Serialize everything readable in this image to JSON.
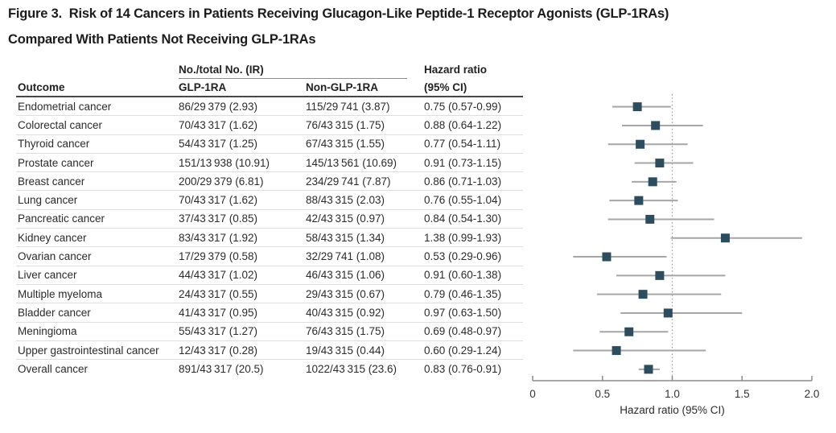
{
  "figure": {
    "title_line1": "Figure 3.  Risk of 14 Cancers in Patients Receiving Glucagon-Like Peptide-1 Receptor Agonists (GLP-1RAs)",
    "title_line2": "Compared With Patients Not Receiving GLP-1RAs"
  },
  "table": {
    "spanner_header": "No./total No. (IR)",
    "col_outcome": "Outcome",
    "col_glp1ra": "GLP-1RA",
    "col_non_glp1ra": "Non-GLP-1RA",
    "col_hr_line1": "Hazard ratio",
    "col_hr_line2": "(95% CI)",
    "rows": [
      {
        "outcome": "Endometrial cancer",
        "glp1ra": "86/29 379 (2.93)",
        "non_glp1ra": "115/29 741 (3.87)",
        "hr": "0.75 (0.57-0.99)"
      },
      {
        "outcome": "Colorectal cancer",
        "glp1ra": "70/43 317 (1.62)",
        "non_glp1ra": "76/43 315 (1.75)",
        "hr": "0.88 (0.64-1.22)"
      },
      {
        "outcome": "Thyroid cancer",
        "glp1ra": "54/43 317 (1.25)",
        "non_glp1ra": "67/43 315 (1.55)",
        "hr": "0.77 (0.54-1.11)"
      },
      {
        "outcome": "Prostate cancer",
        "glp1ra": "151/13 938 (10.91)",
        "non_glp1ra": "145/13 561 (10.69)",
        "hr": "0.91 (0.73-1.15)"
      },
      {
        "outcome": "Breast cancer",
        "glp1ra": "200/29 379 (6.81)",
        "non_glp1ra": "234/29 741 (7.87)",
        "hr": "0.86 (0.71-1.03)"
      },
      {
        "outcome": "Lung cancer",
        "glp1ra": "70/43 317 (1.62)",
        "non_glp1ra": "88/43 315 (2.03)",
        "hr": "0.76 (0.55-1.04)"
      },
      {
        "outcome": "Pancreatic cancer",
        "glp1ra": "37/43 317 (0.85)",
        "non_glp1ra": "42/43 315 (0.97)",
        "hr": "0.84 (0.54-1.30)"
      },
      {
        "outcome": "Kidney cancer",
        "glp1ra": "83/43 317 (1.92)",
        "non_glp1ra": "58/43 315 (1.34)",
        "hr": "1.38 (0.99-1.93)"
      },
      {
        "outcome": "Ovarian cancer",
        "glp1ra": "17/29 379 (0.58)",
        "non_glp1ra": "32/29 741 (1.08)",
        "hr": "0.53 (0.29-0.96)"
      },
      {
        "outcome": "Liver cancer",
        "glp1ra": "44/43 317 (1.02)",
        "non_glp1ra": "46/43 315 (1.06)",
        "hr": "0.91 (0.60-1.38)"
      },
      {
        "outcome": "Multiple myeloma",
        "glp1ra": "24/43 317 (0.55)",
        "non_glp1ra": "29/43 315 (0.67)",
        "hr": "0.79 (0.46-1.35)"
      },
      {
        "outcome": "Bladder cancer",
        "glp1ra": "41/43 317 (0.95)",
        "non_glp1ra": "40/43 315 (0.92)",
        "hr": "0.97 (0.63-1.50)"
      },
      {
        "outcome": "Meningioma",
        "glp1ra": "55/43 317 (1.27)",
        "non_glp1ra": "76/43 315 (1.75)",
        "hr": "0.69 (0.48-0.97)"
      },
      {
        "outcome": "Upper gastrointestinal cancer",
        "glp1ra": "12/43 317 (0.28)",
        "non_glp1ra": "19/43 315 (0.44)",
        "hr": "0.60 (0.29-1.24)"
      },
      {
        "outcome": "Overall cancer",
        "glp1ra": "891/43 317 (20.5)",
        "non_glp1ra": "1022/43 315 (23.6)",
        "hr": "0.83 (0.76-0.91)"
      }
    ]
  },
  "chart_data": {
    "type": "scatter",
    "subtype": "forest-plot",
    "title": "Risk of 14 Cancers in Patients Receiving GLP-1RAs Compared With Patients Not Receiving GLP-1RAs",
    "xlabel": "Hazard ratio (95% CI)",
    "xlim": [
      0,
      2.0
    ],
    "xticks": [
      0,
      0.5,
      1.0,
      1.5,
      2.0
    ],
    "xtick_labels": [
      "0",
      "0.5",
      "1.0",
      "1.5",
      "2.0"
    ],
    "reference_line": 1.0,
    "grid": false,
    "legend_position": "none",
    "categories": [
      "Endometrial cancer",
      "Colorectal cancer",
      "Thyroid cancer",
      "Prostate cancer",
      "Breast cancer",
      "Lung cancer",
      "Pancreatic cancer",
      "Kidney cancer",
      "Ovarian cancer",
      "Liver cancer",
      "Multiple myeloma",
      "Bladder cancer",
      "Meningioma",
      "Upper gastrointestinal cancer",
      "Overall cancer"
    ],
    "series": [
      {
        "name": "hazard_ratio",
        "values": [
          0.75,
          0.88,
          0.77,
          0.91,
          0.86,
          0.76,
          0.84,
          1.38,
          0.53,
          0.91,
          0.79,
          0.97,
          0.69,
          0.6,
          0.83
        ]
      },
      {
        "name": "ci_lower",
        "values": [
          0.57,
          0.64,
          0.54,
          0.73,
          0.71,
          0.55,
          0.54,
          0.99,
          0.29,
          0.6,
          0.46,
          0.63,
          0.48,
          0.29,
          0.76
        ]
      },
      {
        "name": "ci_upper",
        "values": [
          0.99,
          1.22,
          1.11,
          1.15,
          1.03,
          1.04,
          1.3,
          1.93,
          0.96,
          1.38,
          1.35,
          1.5,
          0.97,
          1.24,
          0.91
        ]
      }
    ],
    "colors": {
      "marker": "#2d4d5e",
      "ci_line": "#a6a6a6",
      "reference_line": "#9a9a9a",
      "axis": "#8c8c8c",
      "tick_text": "#333333"
    }
  }
}
